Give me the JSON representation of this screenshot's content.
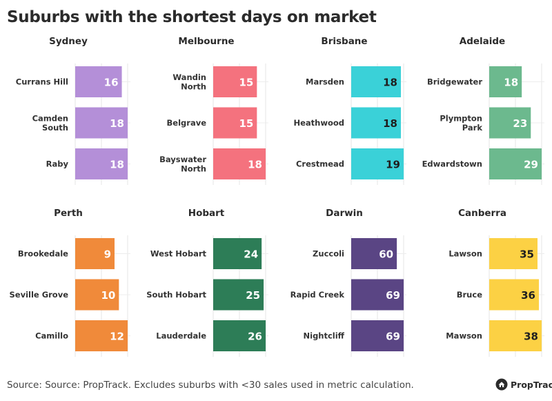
{
  "title": "Suburbs with the shortest days on market",
  "source": "Source: Source: PropTrack. Excludes suburbs with <30 sales used in metric calculation.",
  "logo": {
    "text": "PropTrack",
    "icon": "house-icon"
  },
  "chart_data": [
    {
      "type": "bar",
      "title": "Sydney",
      "color": "#b48fd8",
      "label_color": "#ffffff",
      "xlim": [
        0,
        18
      ],
      "categories": [
        "Currans Hill",
        "Camden South",
        "Raby"
      ],
      "values": [
        16,
        18,
        18
      ]
    },
    {
      "type": "bar",
      "title": "Melbourne",
      "color": "#f4727e",
      "label_color": "#ffffff",
      "xlim": [
        0,
        18
      ],
      "categories": [
        "Wandin North",
        "Belgrave",
        "Bayswater North"
      ],
      "values": [
        15,
        15,
        18
      ]
    },
    {
      "type": "bar",
      "title": "Brisbane",
      "color": "#3ad1d8",
      "label_color": "#1f1f1f",
      "xlim": [
        0,
        19
      ],
      "categories": [
        "Marsden",
        "Heathwood",
        "Crestmead"
      ],
      "values": [
        18,
        18,
        19
      ]
    },
    {
      "type": "bar",
      "title": "Adelaide",
      "color": "#6cb98e",
      "label_color": "#ffffff",
      "xlim": [
        0,
        29
      ],
      "categories": [
        "Bridgewater",
        "Plympton Park",
        "Edwardstown"
      ],
      "values": [
        18,
        23,
        29
      ]
    },
    {
      "type": "bar",
      "title": "Perth",
      "color": "#f08a3a",
      "label_color": "#ffffff",
      "xlim": [
        0,
        12
      ],
      "categories": [
        "Brookedale",
        "Seville Grove",
        "Camillo"
      ],
      "values": [
        9,
        10,
        12
      ]
    },
    {
      "type": "bar",
      "title": "Hobart",
      "color": "#2d7d57",
      "label_color": "#ffffff",
      "xlim": [
        0,
        26
      ],
      "categories": [
        "West Hobart",
        "South Hobart",
        "Lauderdale"
      ],
      "values": [
        24,
        25,
        26
      ]
    },
    {
      "type": "bar",
      "title": "Darwin",
      "color": "#5a4584",
      "label_color": "#ffffff",
      "xlim": [
        0,
        69
      ],
      "categories": [
        "Zuccoli",
        "Rapid Creek",
        "Nightcliff"
      ],
      "values": [
        60,
        69,
        69
      ]
    },
    {
      "type": "bar",
      "title": "Canberra",
      "color": "#fcd144",
      "label_color": "#1f1f1f",
      "xlim": [
        0,
        38
      ],
      "categories": [
        "Lawson",
        "Bruce",
        "Mawson"
      ],
      "values": [
        35,
        36,
        38
      ]
    }
  ]
}
